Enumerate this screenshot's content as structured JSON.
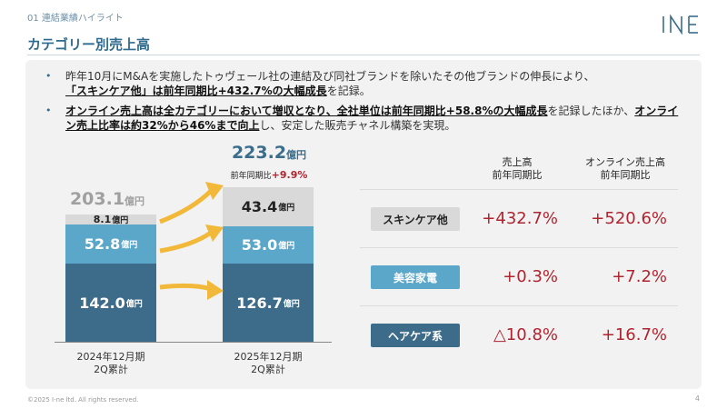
{
  "header": {
    "section_label": "01 連結業績ハイライト",
    "page_title": "カテゴリー別売上高",
    "logo_text": "I-ne"
  },
  "bullets": [
    {
      "line1": "昨年10月にM&Aを実施したトゥヴェール社の連結及び同社ブランドを除いたその他ブランドの伸長により、",
      "bold": "「スキンケア他」は前年同期比+432.7%の大幅成長",
      "rest": "を記録。"
    },
    {
      "bold1": "オンライン売上高は全カテゴリーにおいて増収となり、全社単位は前年同期比+58.8%の大幅成長",
      "mid": "を記録したほか、",
      "bold2": "オンライン売上比率は約32%から46%まで向上",
      "rest": "し、安定した販売チャネル構築を実現。"
    }
  ],
  "chart_data": {
    "type": "bar",
    "stacked": true,
    "categories": [
      "2024年12月期 2Q累計",
      "2025年12月期 2Q累計"
    ],
    "unit": "億円",
    "series": [
      {
        "name": "ヘアケア系",
        "values": [
          142.0,
          126.7
        ],
        "color": "#3d6c8a"
      },
      {
        "name": "美容家電",
        "values": [
          52.8,
          53.0
        ],
        "color": "#5ba7c9"
      },
      {
        "name": "スキンケア他",
        "values": [
          8.1,
          43.4
        ],
        "color": "#d9d9d9"
      }
    ],
    "totals": [
      203.1,
      223.2
    ],
    "growth_label": "前年同期比+9.9%"
  },
  "chart_text": {
    "total_2024": "203.1",
    "total_2025": "223.2",
    "unit": "億円",
    "growth_prefix": "前年同期比",
    "growth_value": "+9.9%",
    "x1_line1": "2024年12月期",
    "x1_line2": "2Q累計",
    "x2_line1": "2025年12月期",
    "x2_line2": "2Q累計",
    "seg_2024_hair": "142.0",
    "seg_2024_beauty": "52.8",
    "seg_2024_skin": "8.1",
    "seg_2025_hair": "126.7",
    "seg_2025_beauty": "53.0",
    "seg_2025_skin": "43.4"
  },
  "table": {
    "col1_line1": "売上高",
    "col1_line2": "前年同期比",
    "col2_line1": "オンライン売上高",
    "col2_line2": "前年同期比",
    "rows": [
      {
        "category": "スキンケア他",
        "sales": "+432.7%",
        "online": "+520.6%",
        "bg": "#d9d9d9",
        "fg": "#222"
      },
      {
        "category": "美容家電",
        "sales": "+0.3%",
        "online": "+7.2%",
        "bg": "#5ba7c9",
        "fg": "#ffffff"
      },
      {
        "category": "ヘアケア系",
        "sales": "△10.8%",
        "online": "+16.7%",
        "bg": "#3d6c8a",
        "fg": "#ffffff"
      }
    ]
  },
  "colors": {
    "accent": "#3a6d8c",
    "increase": "#b0242f",
    "arrow": "#f2b83a"
  },
  "footer": {
    "copyright": "©2025 I-ne ltd. All rights reserved.",
    "page_number": "4"
  }
}
